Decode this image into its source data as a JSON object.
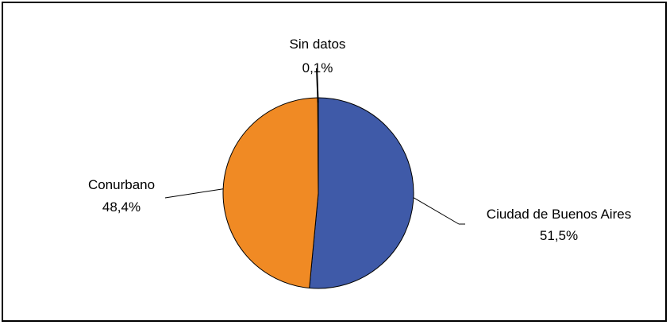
{
  "chart_data": {
    "type": "pie",
    "title": "",
    "slices": [
      {
        "label": "Ciudad de Buenos Aires",
        "value": 51.5,
        "value_label": "51,5%",
        "color": "#3f5aa8"
      },
      {
        "label": "Conurbano",
        "value": 48.4,
        "value_label": "48,4%",
        "color": "#f08a24"
      },
      {
        "label": "Sin datos",
        "value": 0.1,
        "value_label": "0,1%",
        "color": "#ffffff"
      }
    ],
    "start": "12 o'clock",
    "direction": "clockwise",
    "legend": "none"
  }
}
